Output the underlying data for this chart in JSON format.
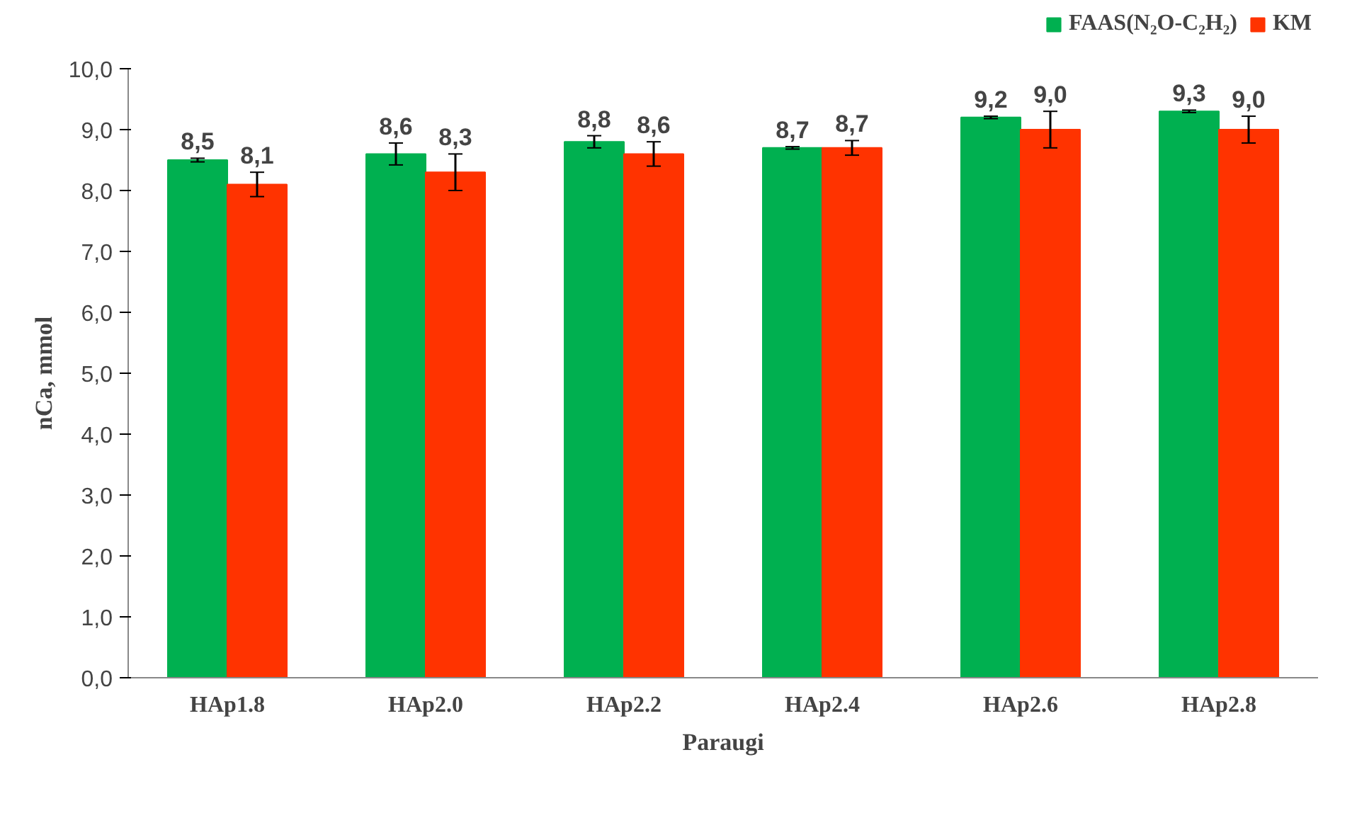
{
  "chart_data": {
    "type": "bar",
    "xlabel": "Paraugi",
    "ylabel": "nCa, mmol",
    "categories": [
      "HAp1.8",
      "HAp2.0",
      "HAp2.2",
      "HAp2.4",
      "HAp2.6",
      "HAp2.8"
    ],
    "series": [
      {
        "name": "FAAS(N₂O-C₂H₂)",
        "color": "#00b050",
        "values": [
          8.5,
          8.6,
          8.8,
          8.7,
          9.2,
          9.3
        ],
        "errors": [
          0.03,
          0.18,
          0.1,
          0.02,
          0.02,
          0.02
        ],
        "value_labels": [
          "8,5",
          "8,6",
          "8,8",
          "8,7",
          "9,2",
          "9,3"
        ]
      },
      {
        "name": "KM",
        "color": "#ff3300",
        "values": [
          8.1,
          8.3,
          8.6,
          8.7,
          9.0,
          9.0
        ],
        "errors": [
          0.2,
          0.3,
          0.2,
          0.12,
          0.3,
          0.22
        ],
        "value_labels": [
          "8,1",
          "8,3",
          "8,6",
          "8,7",
          "9,0",
          "9,0"
        ]
      }
    ],
    "ylim": [
      0,
      10
    ],
    "yticks": [
      {
        "value": 0,
        "label": "0,0"
      },
      {
        "value": 1,
        "label": "1,0"
      },
      {
        "value": 2,
        "label": "2,0"
      },
      {
        "value": 3,
        "label": "3,0"
      },
      {
        "value": 4,
        "label": "4,0"
      },
      {
        "value": 5,
        "label": "5,0"
      },
      {
        "value": 6,
        "label": "6,0"
      },
      {
        "value": 7,
        "label": "7,0"
      },
      {
        "value": 8,
        "label": "8,0"
      },
      {
        "value": 9,
        "label": "9,0"
      },
      {
        "value": 10,
        "label": "10,0"
      }
    ],
    "grid": false,
    "legend": "top right"
  }
}
